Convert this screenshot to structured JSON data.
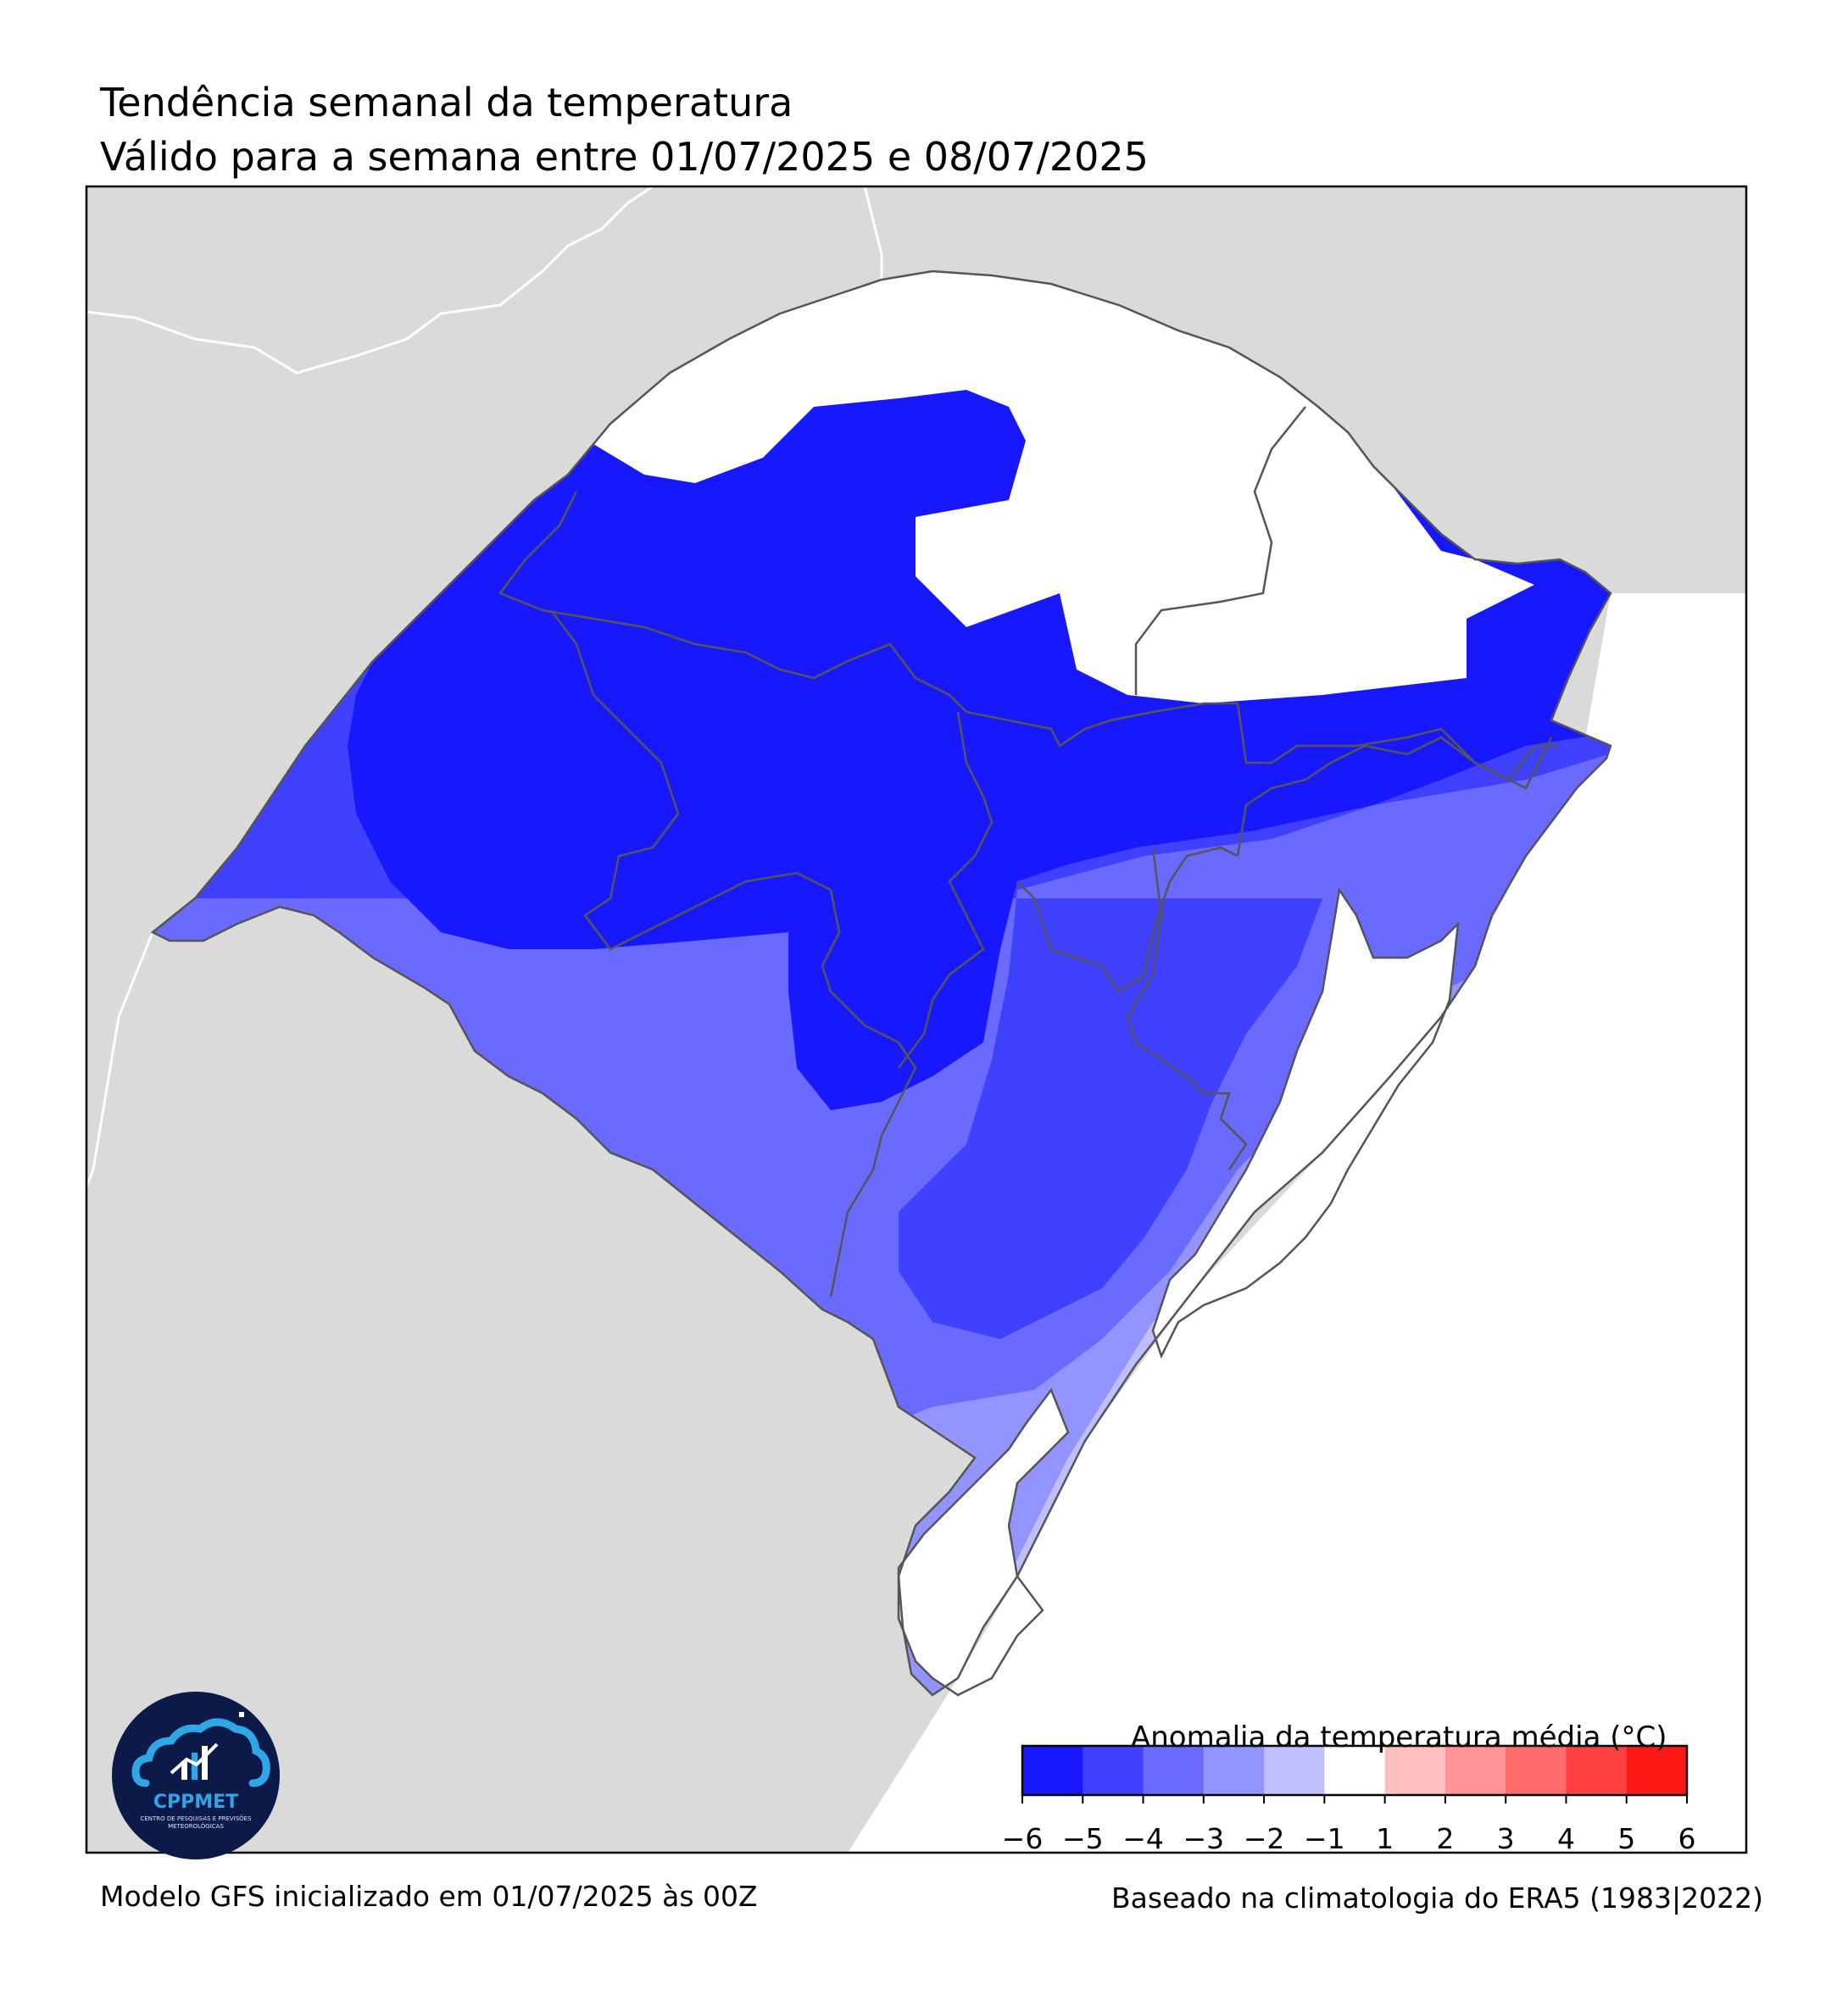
{
  "header": {
    "title": "Tendência semanal da temperatura",
    "subtitle": "Válido para a semana entre 01/07/2025 e 08/07/2025"
  },
  "footer": {
    "model_info": "Modelo GFS inicializado em 01/07/2025 às 00Z",
    "climatology": "Baseado na climatologia do ERA5 (1983|2022)"
  },
  "legend": {
    "title": "Anomalia da temperatura média (°C)",
    "ticks": [
      "−6",
      "−5",
      "−4",
      "−3",
      "−2",
      "−1",
      "1",
      "2",
      "3",
      "4",
      "5",
      "6"
    ],
    "colors": [
      "#1818ff",
      "#4040ff",
      "#6a6aff",
      "#9494ff",
      "#bfbfff",
      "#ffffff",
      "#ffbfbf",
      "#ff9494",
      "#ff6a6a",
      "#ff4040",
      "#ff1818"
    ]
  },
  "map_colors": {
    "land_outside": "#dadada",
    "sea": "#ffffff",
    "anomaly_-6_-5": "#1818ff",
    "anomaly_-5_-4": "#4040ff",
    "anomaly_-4_-3": "#6a6aff",
    "anomaly_-3_-2": "#9494ff",
    "anomaly_-2_-1": "#bfbfff",
    "anomaly_-1_1": "#ffffff",
    "border": "#555555"
  },
  "logo": {
    "name": "CPPMET",
    "subtitle": "CENTRO DE PESQUISAS E PREVISÕES METEOROLÓGICAS"
  }
}
